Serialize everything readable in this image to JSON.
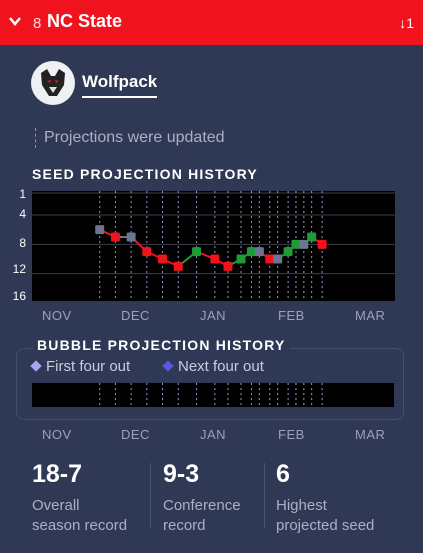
{
  "header": {
    "seed": "8",
    "team": "NC State",
    "rank_change": "↓1"
  },
  "team_info": {
    "nickname": "Wolfpack",
    "update_note": "Projections were updated"
  },
  "seed_history": {
    "title": "SEED PROJECTION HISTORY",
    "y_ticks": [
      "1",
      "4",
      "8",
      "12",
      "16"
    ],
    "months": [
      "NOV",
      "DEC",
      "JAN",
      "FEB",
      "MAR"
    ]
  },
  "bubble_history": {
    "title": "BUBBLE PROJECTION HISTORY",
    "legend": [
      "First four out",
      "Next four out"
    ],
    "months": [
      "NOV",
      "DEC",
      "JAN",
      "FEB",
      "MAR"
    ]
  },
  "stats": [
    {
      "value": "18-7",
      "label1": "Overall",
      "label2": "season record"
    },
    {
      "value": "9-3",
      "label1": "Conference",
      "label2": "record"
    },
    {
      "value": "6",
      "label1": "Highest",
      "label2": "projected seed"
    }
  ],
  "chart_data": [
    {
      "type": "line",
      "title": "SEED PROJECTION HISTORY",
      "x_ticks": [
        "NOV",
        "DEC",
        "JAN",
        "FEB",
        "MAR"
      ],
      "y_ticks": [
        1,
        4,
        8,
        12,
        16
      ],
      "ylim": [
        16,
        1
      ],
      "y_inverted": true,
      "points": [
        {
          "date": "Nov 20",
          "seed": 6,
          "status": "same"
        },
        {
          "date": "Nov 26",
          "seed": 7,
          "status": "down"
        },
        {
          "date": "Dec 2",
          "seed": 7,
          "status": "same"
        },
        {
          "date": "Dec 8",
          "seed": 9,
          "status": "down"
        },
        {
          "date": "Dec 14",
          "seed": 10,
          "status": "down"
        },
        {
          "date": "Dec 20",
          "seed": 11,
          "status": "down"
        },
        {
          "date": "Dec 27",
          "seed": 9,
          "status": "up"
        },
        {
          "date": "Jan 3",
          "seed": 10,
          "status": "down"
        },
        {
          "date": "Jan 8",
          "seed": 11,
          "status": "down"
        },
        {
          "date": "Jan 13",
          "seed": 10,
          "status": "up"
        },
        {
          "date": "Jan 17",
          "seed": 9,
          "status": "up"
        },
        {
          "date": "Jan 20",
          "seed": 9,
          "status": "same"
        },
        {
          "date": "Jan 24",
          "seed": 10,
          "status": "down"
        },
        {
          "date": "Jan 27",
          "seed": 10,
          "status": "same"
        },
        {
          "date": "Jan 31",
          "seed": 9,
          "status": "up"
        },
        {
          "date": "Feb 3",
          "seed": 8,
          "status": "up"
        },
        {
          "date": "Feb 6",
          "seed": 8,
          "status": "same"
        },
        {
          "date": "Feb 9",
          "seed": 7,
          "status": "up"
        },
        {
          "date": "Feb 13",
          "seed": 8,
          "status": "down"
        }
      ],
      "colors": {
        "up": "#1e9b34",
        "down": "#f0131e",
        "same": "#6c7590"
      }
    },
    {
      "type": "line",
      "title": "BUBBLE PROJECTION HISTORY",
      "x_ticks": [
        "NOV",
        "DEC",
        "JAN",
        "FEB",
        "MAR"
      ],
      "series": [
        {
          "name": "First four out",
          "values": [],
          "color": "#a9a6f0"
        },
        {
          "name": "Next four out",
          "values": [],
          "color": "#5a55e0"
        }
      ]
    }
  ]
}
